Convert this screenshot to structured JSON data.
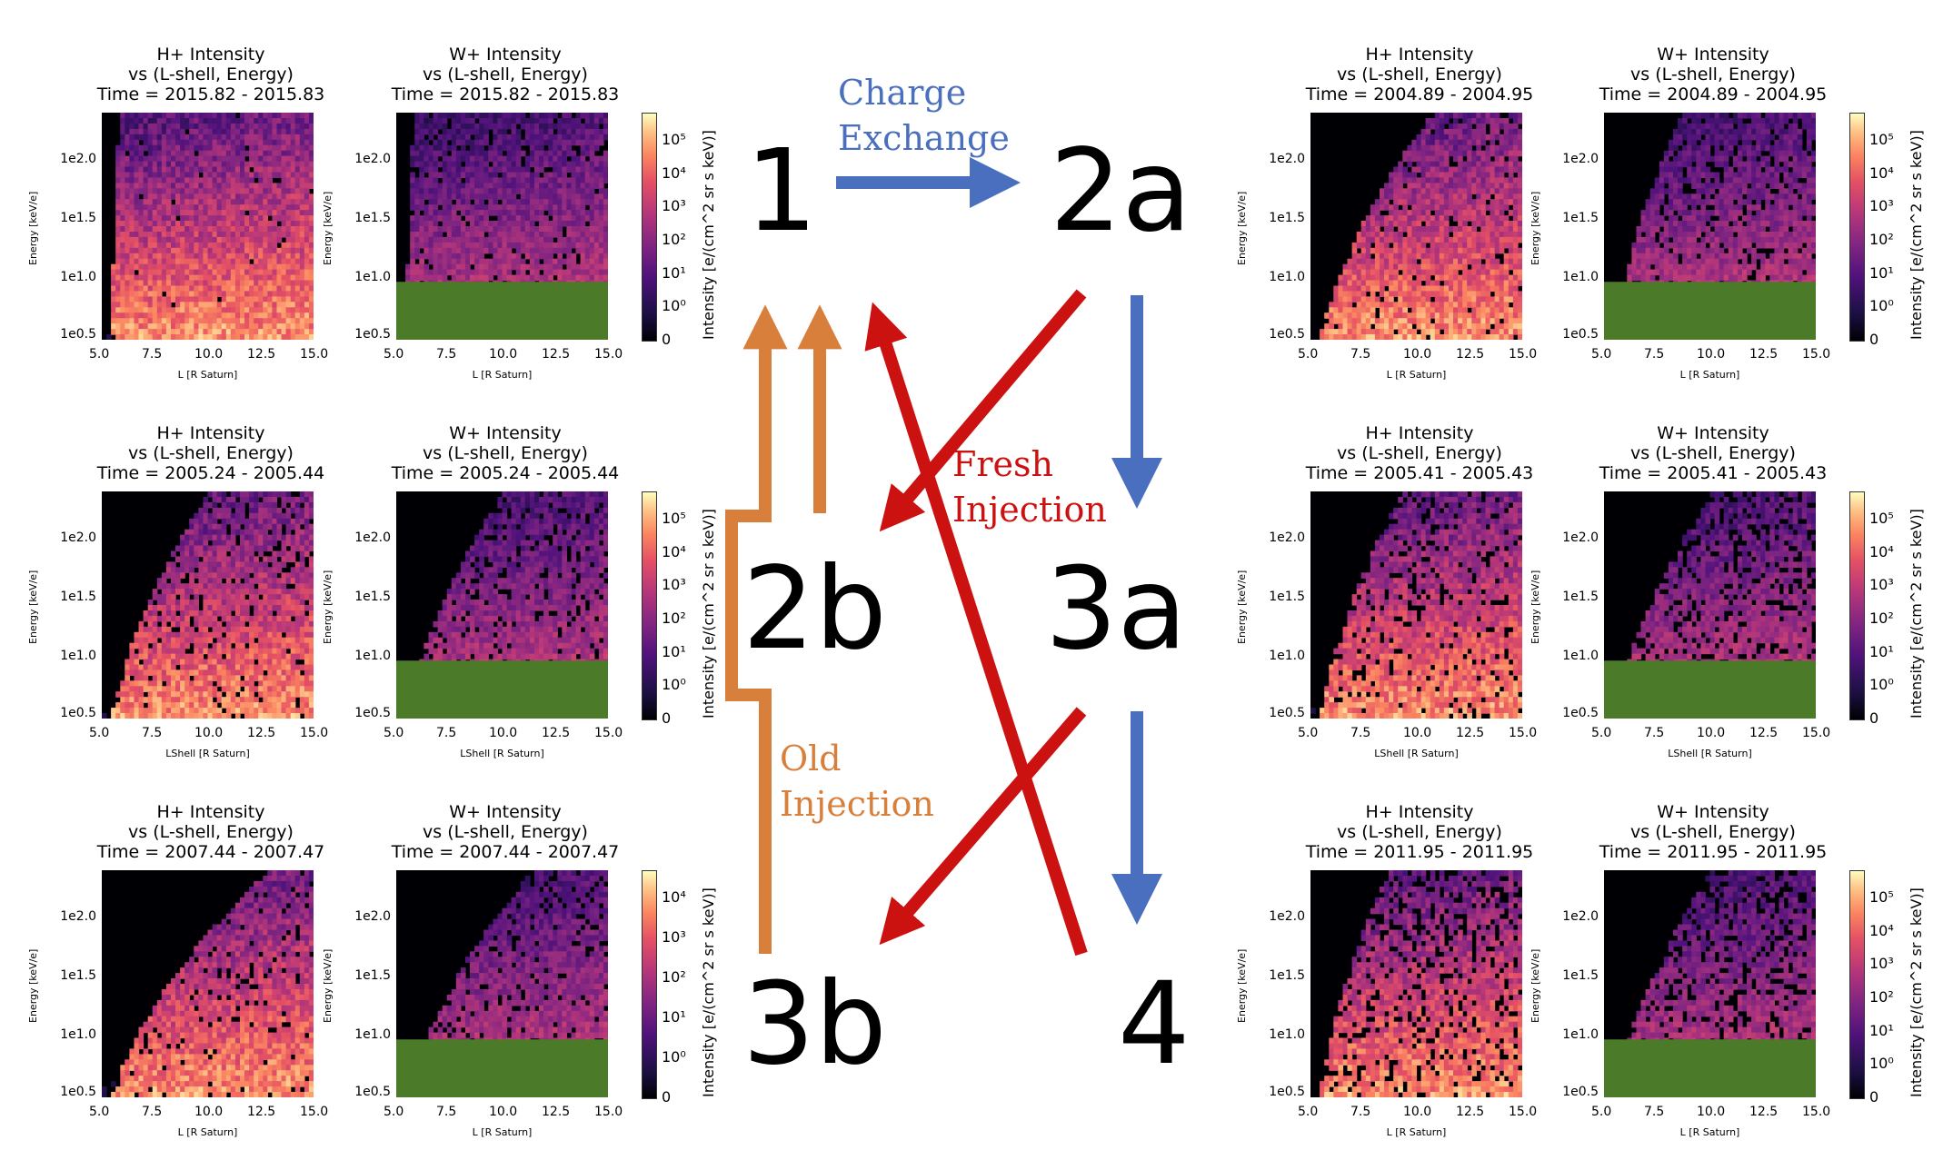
{
  "panels": [
    {
      "species": "H+ Intensity",
      "sub": "vs (L-shell, Energy)",
      "time": "Time = 2015.82 - 2015.83",
      "xlabel": "L [R Saturn]",
      "kind": "H",
      "ion": 0.05,
      "cutoff": 0.0,
      "colorbar": false
    },
    {
      "species": "W+ Intensity",
      "sub": "vs (L-shell, Energy)",
      "time": "Time = 2015.82 - 2015.83",
      "xlabel": "L [R Saturn]",
      "kind": "W",
      "ion": 0.3,
      "cutoff": 0.0,
      "colorbar": true,
      "cbticks": [
        "10^5",
        "10^4",
        "10^3",
        "10^2",
        "10^1",
        "10^0",
        "0"
      ]
    },
    {
      "species": "H+ Intensity",
      "sub": "vs (L-shell, Energy)",
      "time": "Time = 2005.24 - 2005.44",
      "xlabel": "LShell [R Saturn]",
      "kind": "H",
      "ion": 0.35,
      "cutoff": 0.3,
      "colorbar": false
    },
    {
      "species": "W+ Intensity",
      "sub": "vs (L-shell, Energy)",
      "time": "Time = 2005.24 - 2005.44",
      "xlabel": "LShell [R Saturn]",
      "kind": "W",
      "ion": 0.45,
      "cutoff": 0.3,
      "colorbar": true,
      "cbticks": [
        "10^5",
        "10^4",
        "10^3",
        "10^2",
        "10^1",
        "10^0",
        "0"
      ]
    },
    {
      "species": "H+ Intensity",
      "sub": "vs (L-shell, Energy)",
      "time": "Time = 2007.44 - 2007.47",
      "xlabel": "L [R Saturn]",
      "kind": "H",
      "ion": 0.4,
      "cutoff": 0.5,
      "colorbar": false
    },
    {
      "species": "W+ Intensity",
      "sub": "vs (L-shell, Energy)",
      "time": "Time = 2007.44 - 2007.47",
      "xlabel": "L [R Saturn]",
      "kind": "W",
      "ion": 0.5,
      "cutoff": 0.4,
      "colorbar": true,
      "cbticks": [
        "10^4",
        "10^3",
        "10^2",
        "10^1",
        "10^0",
        "0"
      ]
    },
    {
      "species": "H+ Intensity",
      "sub": "vs (L-shell, Energy)",
      "time": "Time = 2004.89 - 2004.95",
      "xlabel": "L [R Saturn]",
      "kind": "H",
      "ion": 0.25,
      "cutoff": 0.35,
      "colorbar": false
    },
    {
      "species": "W+ Intensity",
      "sub": "vs (L-shell, Energy)",
      "time": "Time = 2004.89 - 2004.95",
      "xlabel": "L [R Saturn]",
      "kind": "W",
      "ion": 0.45,
      "cutoff": 0.2,
      "colorbar": true,
      "cbticks": [
        "10^5",
        "10^4",
        "10^3",
        "10^2",
        "10^1",
        "10^0",
        "0"
      ]
    },
    {
      "species": "H+ Intensity",
      "sub": "vs (L-shell, Energy)",
      "time": "Time = 2005.41 - 2005.43",
      "xlabel": "LShell [R Saturn]",
      "kind": "H",
      "ion": 0.5,
      "cutoff": 0.25,
      "colorbar": false
    },
    {
      "species": "W+ Intensity",
      "sub": "vs (L-shell, Energy)",
      "time": "Time = 2005.41 - 2005.43",
      "xlabel": "LShell [R Saturn]",
      "kind": "W",
      "ion": 0.75,
      "cutoff": 0.3,
      "colorbar": true,
      "cbticks": [
        "10^5",
        "10^4",
        "10^3",
        "10^2",
        "10^1",
        "10^0",
        "0"
      ]
    },
    {
      "species": "H+ Intensity",
      "sub": "vs (L-shell, Energy)",
      "time": "Time = 2011.95 - 2011.95",
      "xlabel": "L [R Saturn]",
      "kind": "H",
      "ion": 0.75,
      "cutoff": 0.2,
      "colorbar": false
    },
    {
      "species": "W+ Intensity",
      "sub": "vs (L-shell, Energy)",
      "time": "Time = 2011.95 - 2011.95",
      "xlabel": "L [R Saturn]",
      "kind": "W",
      "ion": 0.85,
      "cutoff": 0.3,
      "colorbar": true,
      "cbticks": [
        "10^5",
        "10^4",
        "10^3",
        "10^2",
        "10^1",
        "10^0",
        "0"
      ]
    }
  ],
  "axes": {
    "ylabel": "Energy [keV/e]",
    "xticks": [
      "5.0",
      "7.5",
      "10.0",
      "12.5",
      "15.0"
    ],
    "yticks": [
      "1e2.0",
      "1e1.5",
      "1e1.0",
      "1e0.5"
    ],
    "colorbar_label": "Intensity [e/(cm^2 sr s keV)]"
  },
  "diagram": {
    "states": [
      "1",
      "2a",
      "2b",
      "3a",
      "3b",
      "4"
    ],
    "charge_exchange": [
      "Charge",
      "Exchange"
    ],
    "fresh_injection": [
      "Fresh",
      "Injection"
    ],
    "old_injection": [
      "Old",
      "Injection"
    ],
    "colors": {
      "charge_exchange": "#4a6fbf",
      "fresh_injection": "#cc1111",
      "old_injection": "#d87f3c",
      "green_mask": "#4b7a28"
    }
  },
  "chart_data": {
    "type": "heatmap",
    "x_axis": {
      "label": "L [R Saturn]",
      "range": [
        5.0,
        15.0
      ],
      "ticks": [
        5.0,
        7.5,
        10.0,
        12.5,
        15.0
      ]
    },
    "y_axis": {
      "label": "Energy [keV/e]",
      "scale": "log",
      "range": [
        0.4,
        2.35
      ],
      "ticks": [
        "1e0.5",
        "1e1.0",
        "1e1.5",
        "1e2.0"
      ]
    },
    "colorbar": {
      "label": "Intensity [e/(cm^2 sr s keV)]",
      "colormap": "magma"
    },
    "panels": [
      {
        "title": "H+ Intensity vs (L-shell, Energy)",
        "time": "2015.82 - 2015.83"
      },
      {
        "title": "W+ Intensity vs (L-shell, Energy)",
        "time": "2015.82 - 2015.83"
      },
      {
        "title": "H+ Intensity vs (L-shell, Energy)",
        "time": "2005.24 - 2005.44"
      },
      {
        "title": "W+ Intensity vs (L-shell, Energy)",
        "time": "2005.24 - 2005.44"
      },
      {
        "title": "H+ Intensity vs (L-shell, Energy)",
        "time": "2007.44 - 2007.47"
      },
      {
        "title": "W+ Intensity vs (L-shell, Energy)",
        "time": "2007.44 - 2007.47"
      },
      {
        "title": "H+ Intensity vs (L-shell, Energy)",
        "time": "2004.89 - 2004.95"
      },
      {
        "title": "W+ Intensity vs (L-shell, Energy)",
        "time": "2004.89 - 2004.95"
      },
      {
        "title": "H+ Intensity vs (L-shell, Energy)",
        "time": "2005.41 - 2005.43"
      },
      {
        "title": "W+ Intensity vs (L-shell, Energy)",
        "time": "2005.41 - 2005.43"
      },
      {
        "title": "H+ Intensity vs (L-shell, Energy)",
        "time": "2011.95 - 2011.95"
      },
      {
        "title": "W+ Intensity vs (L-shell, Energy)",
        "time": "2011.95 - 2011.95"
      }
    ]
  }
}
